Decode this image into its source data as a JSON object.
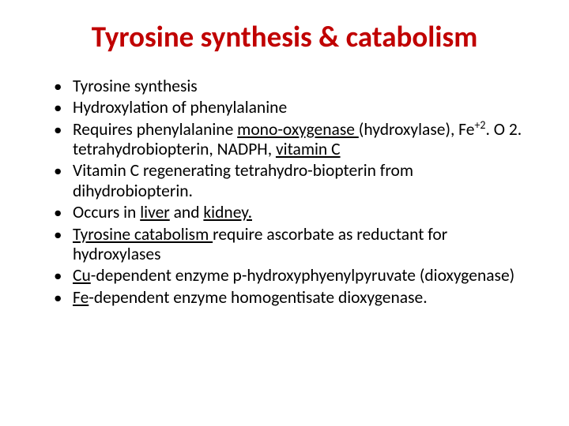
{
  "title_text": "Tyrosine synthesis & catabolism",
  "title_color": "#c00000",
  "body_color": "#000000",
  "background_color": "#ffffff",
  "title_fontsize": 37,
  "body_fontsize": 21.5,
  "bullets": [
    {
      "segments": [
        {
          "text": "Tyrosine synthesis"
        }
      ]
    },
    {
      "segments": [
        {
          "text": "Hydroxylation of phenylalanine"
        }
      ]
    },
    {
      "segments": [
        {
          "text": "Requires phenylalanine "
        },
        {
          "text": "mono-oxygenase ",
          "underline": true
        },
        {
          "text": "(hydroxylase), Fe"
        },
        {
          "text": "+2",
          "sup": true
        },
        {
          "text": ". O 2. tetrahydrobiopterin, NADPH, "
        },
        {
          "text": "vitamin C",
          "underline": true
        }
      ]
    },
    {
      "segments": [
        {
          "text": "Vitamin C regenerating tetrahydro-biopterin from dihydrobiopterin."
        }
      ]
    },
    {
      "segments": [
        {
          "text": "Occurs in "
        },
        {
          "text": "liver",
          "underline": true
        },
        {
          "text": " and "
        },
        {
          "text": "kidney.",
          "underline": true
        }
      ]
    },
    {
      "segments": [
        {
          "text": "Tyrosine catabolism ",
          "underline": true
        },
        {
          "text": "require ascorbate as reductant for hydroxylases"
        }
      ]
    },
    {
      "segments": [
        {
          "text": "Cu",
          "underline": true
        },
        {
          "text": "-dependent enzyme p-hydroxyphyenylpyruvate (dioxygenase)"
        }
      ]
    },
    {
      "segments": [
        {
          "text": "Fe",
          "underline": true
        },
        {
          "text": "-dependent enzyme homogentisate dioxygenase."
        }
      ]
    }
  ]
}
